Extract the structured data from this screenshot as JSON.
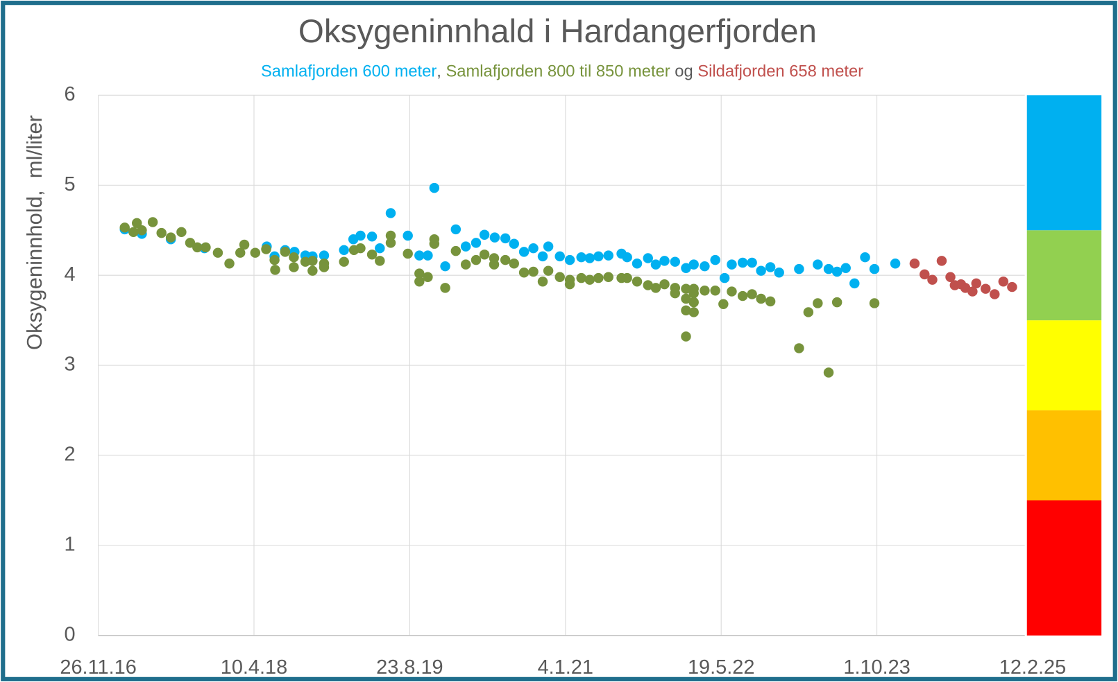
{
  "chart_data": {
    "type": "scatter",
    "title": "Oksygeninnhald i Hardangerfjorden",
    "subtitle_separators": [
      ", ",
      " og "
    ],
    "y_label": "Oksygeninnhold,  ml/liter",
    "xlim": [
      "2016-11-26",
      "2025-02-12"
    ],
    "xticks": [
      {
        "value": "2016-11-26",
        "label": "26.11.16"
      },
      {
        "value": "2018-04-10",
        "label": "10.4.18"
      },
      {
        "value": "2019-08-23",
        "label": "23.8.19"
      },
      {
        "value": "2021-01-04",
        "label": "4.1.21"
      },
      {
        "value": "2022-05-19",
        "label": "19.5.22"
      },
      {
        "value": "2023-10-01",
        "label": "1.10.23"
      },
      {
        "value": "2025-02-12",
        "label": "12.2.25"
      }
    ],
    "ylim": [
      0,
      6
    ],
    "yticks": [
      0,
      1,
      2,
      3,
      4,
      5,
      6
    ],
    "grid": true,
    "bands": [
      {
        "from": 0,
        "to": 1.5,
        "color": "#ff0000"
      },
      {
        "from": 1.5,
        "to": 2.5,
        "color": "#ffc000"
      },
      {
        "from": 2.5,
        "to": 3.5,
        "color": "#ffff00"
      },
      {
        "from": 3.5,
        "to": 4.5,
        "color": "#92d050"
      },
      {
        "from": 4.5,
        "to": 6,
        "color": "#00b0f0"
      }
    ],
    "series": [
      {
        "name": "Samlafjorden 600 meter",
        "color": "#00b0f0",
        "x": [
          "2017-02-19",
          "2017-04-15",
          "2017-07-17",
          "2017-11-02",
          "2018-05-21",
          "2018-06-15",
          "2018-07-19",
          "2018-08-18",
          "2018-09-22",
          "2018-10-15",
          "2018-11-21",
          "2019-01-24",
          "2019-02-23",
          "2019-03-18",
          "2019-04-24",
          "2019-05-19",
          "2019-06-23",
          "2019-08-17",
          "2019-09-23",
          "2019-10-20",
          "2019-11-10",
          "2019-12-15",
          "2020-01-18",
          "2020-02-19",
          "2020-03-23",
          "2020-04-19",
          "2020-05-22",
          "2020-06-25",
          "2020-07-23",
          "2020-08-24",
          "2020-09-23",
          "2020-10-23",
          "2020-11-10",
          "2020-12-17",
          "2021-01-18",
          "2021-02-24",
          "2021-03-23",
          "2021-04-20",
          "2021-05-22",
          "2021-07-03",
          "2021-07-21",
          "2021-08-22",
          "2021-09-26",
          "2021-10-21",
          "2021-11-18",
          "2021-12-22",
          "2022-01-26",
          "2022-02-20",
          "2022-03-27",
          "2022-04-30",
          "2022-05-30",
          "2022-06-22",
          "2022-07-27",
          "2022-08-26",
          "2022-09-24",
          "2022-10-24",
          "2022-11-21",
          "2023-01-24",
          "2023-03-25",
          "2023-04-29",
          "2023-05-26",
          "2023-06-23",
          "2023-07-21",
          "2023-08-24",
          "2023-09-23",
          "2023-11-29"
        ],
        "values": [
          4.51,
          4.46,
          4.4,
          4.3,
          4.32,
          4.21,
          4.28,
          4.26,
          4.22,
          4.21,
          4.22,
          4.28,
          4.4,
          4.44,
          4.43,
          4.3,
          4.69,
          4.44,
          4.22,
          4.22,
          4.97,
          4.1,
          4.51,
          4.32,
          4.36,
          4.45,
          4.42,
          4.41,
          4.35,
          4.26,
          4.3,
          4.21,
          4.32,
          4.21,
          4.17,
          4.2,
          4.19,
          4.21,
          4.22,
          4.24,
          4.2,
          4.13,
          4.19,
          4.12,
          4.16,
          4.15,
          4.08,
          4.12,
          4.1,
          4.17,
          3.97,
          4.12,
          4.14,
          4.14,
          4.05,
          4.09,
          4.03,
          4.07,
          4.12,
          4.07,
          4.04,
          4.08,
          3.91,
          4.2,
          4.07,
          4.13
        ]
      },
      {
        "name": "Samlafjorden 800 til 850 meter",
        "color": "#77933c",
        "x": [
          "2017-02-19",
          "2017-03-19",
          "2017-03-30",
          "2017-04-15",
          "2017-05-20",
          "2017-06-17",
          "2017-07-17",
          "2017-08-20",
          "2017-09-17",
          "2017-10-10",
          "2017-11-06",
          "2017-12-15",
          "2018-01-21",
          "2018-02-25",
          "2018-03-10",
          "2018-04-14",
          "2018-05-19",
          "2018-06-15",
          "2018-06-17",
          "2018-07-19",
          "2018-08-16",
          "2018-08-16",
          "2018-09-22",
          "2018-10-15",
          "2018-10-15",
          "2018-11-21",
          "2018-11-21",
          "2019-01-24",
          "2019-02-25",
          "2019-03-18",
          "2019-04-24",
          "2019-05-19",
          "2019-06-23",
          "2019-06-23",
          "2019-08-17",
          "2019-09-23",
          "2019-09-23",
          "2019-10-20",
          "2019-11-10",
          "2019-11-10",
          "2019-12-15",
          "2020-01-18",
          "2020-02-19",
          "2020-03-23",
          "2020-04-19",
          "2020-05-20",
          "2020-05-20",
          "2020-06-25",
          "2020-07-23",
          "2020-08-24",
          "2020-09-23",
          "2020-10-23",
          "2020-11-10",
          "2020-12-17",
          "2021-01-18",
          "2021-01-18",
          "2021-02-24",
          "2021-03-23",
          "2021-04-20",
          "2021-05-22",
          "2021-07-03",
          "2021-07-21",
          "2021-08-22",
          "2021-09-26",
          "2021-10-21",
          "2021-11-18",
          "2021-12-22",
          "2021-12-22",
          "2022-01-26",
          "2022-01-26",
          "2022-01-26",
          "2022-01-26",
          "2022-02-20",
          "2022-02-20",
          "2022-02-20",
          "2022-02-20",
          "2022-03-27",
          "2022-04-30",
          "2022-05-26",
          "2022-06-22",
          "2022-07-27",
          "2022-08-26",
          "2022-09-24",
          "2022-10-24",
          "2023-01-24",
          "2023-02-23",
          "2023-03-25",
          "2023-04-29",
          "2023-05-26",
          "2023-09-23"
        ],
        "values": [
          4.53,
          4.48,
          4.58,
          4.5,
          4.59,
          4.47,
          4.42,
          4.48,
          4.36,
          4.31,
          4.31,
          4.25,
          4.13,
          4.25,
          4.34,
          4.25,
          4.29,
          4.17,
          4.06,
          4.26,
          4.2,
          4.09,
          4.15,
          4.16,
          4.05,
          4.13,
          4.09,
          4.15,
          4.28,
          4.3,
          4.23,
          4.16,
          4.44,
          4.36,
          4.24,
          4.02,
          3.93,
          3.98,
          4.4,
          4.35,
          3.86,
          4.27,
          4.12,
          4.17,
          4.23,
          4.19,
          4.12,
          4.17,
          4.13,
          4.03,
          4.04,
          3.93,
          4.05,
          3.98,
          3.95,
          3.9,
          3.97,
          3.95,
          3.97,
          3.98,
          3.97,
          3.97,
          3.93,
          3.89,
          3.86,
          3.9,
          3.86,
          3.8,
          3.85,
          3.74,
          3.61,
          3.32,
          3.85,
          3.8,
          3.7,
          3.59,
          3.83,
          3.83,
          3.68,
          3.82,
          3.77,
          3.79,
          3.74,
          3.71,
          3.19,
          3.59,
          3.69,
          2.92,
          3.7,
          3.69
        ]
      },
      {
        "name": "Sildafjorden 658 meter",
        "color": "#c0504d",
        "x": [
          "2024-01-30",
          "2024-03-02",
          "2024-03-27",
          "2024-04-26",
          "2024-05-24",
          "2024-06-07",
          "2024-06-27",
          "2024-07-11",
          "2024-08-03",
          "2024-08-15",
          "2024-09-14",
          "2024-10-13",
          "2024-11-10",
          "2024-12-08"
        ],
        "values": [
          4.13,
          4.01,
          3.95,
          4.16,
          3.98,
          3.89,
          3.9,
          3.86,
          3.82,
          3.91,
          3.85,
          3.79,
          3.93,
          3.87
        ]
      }
    ]
  }
}
